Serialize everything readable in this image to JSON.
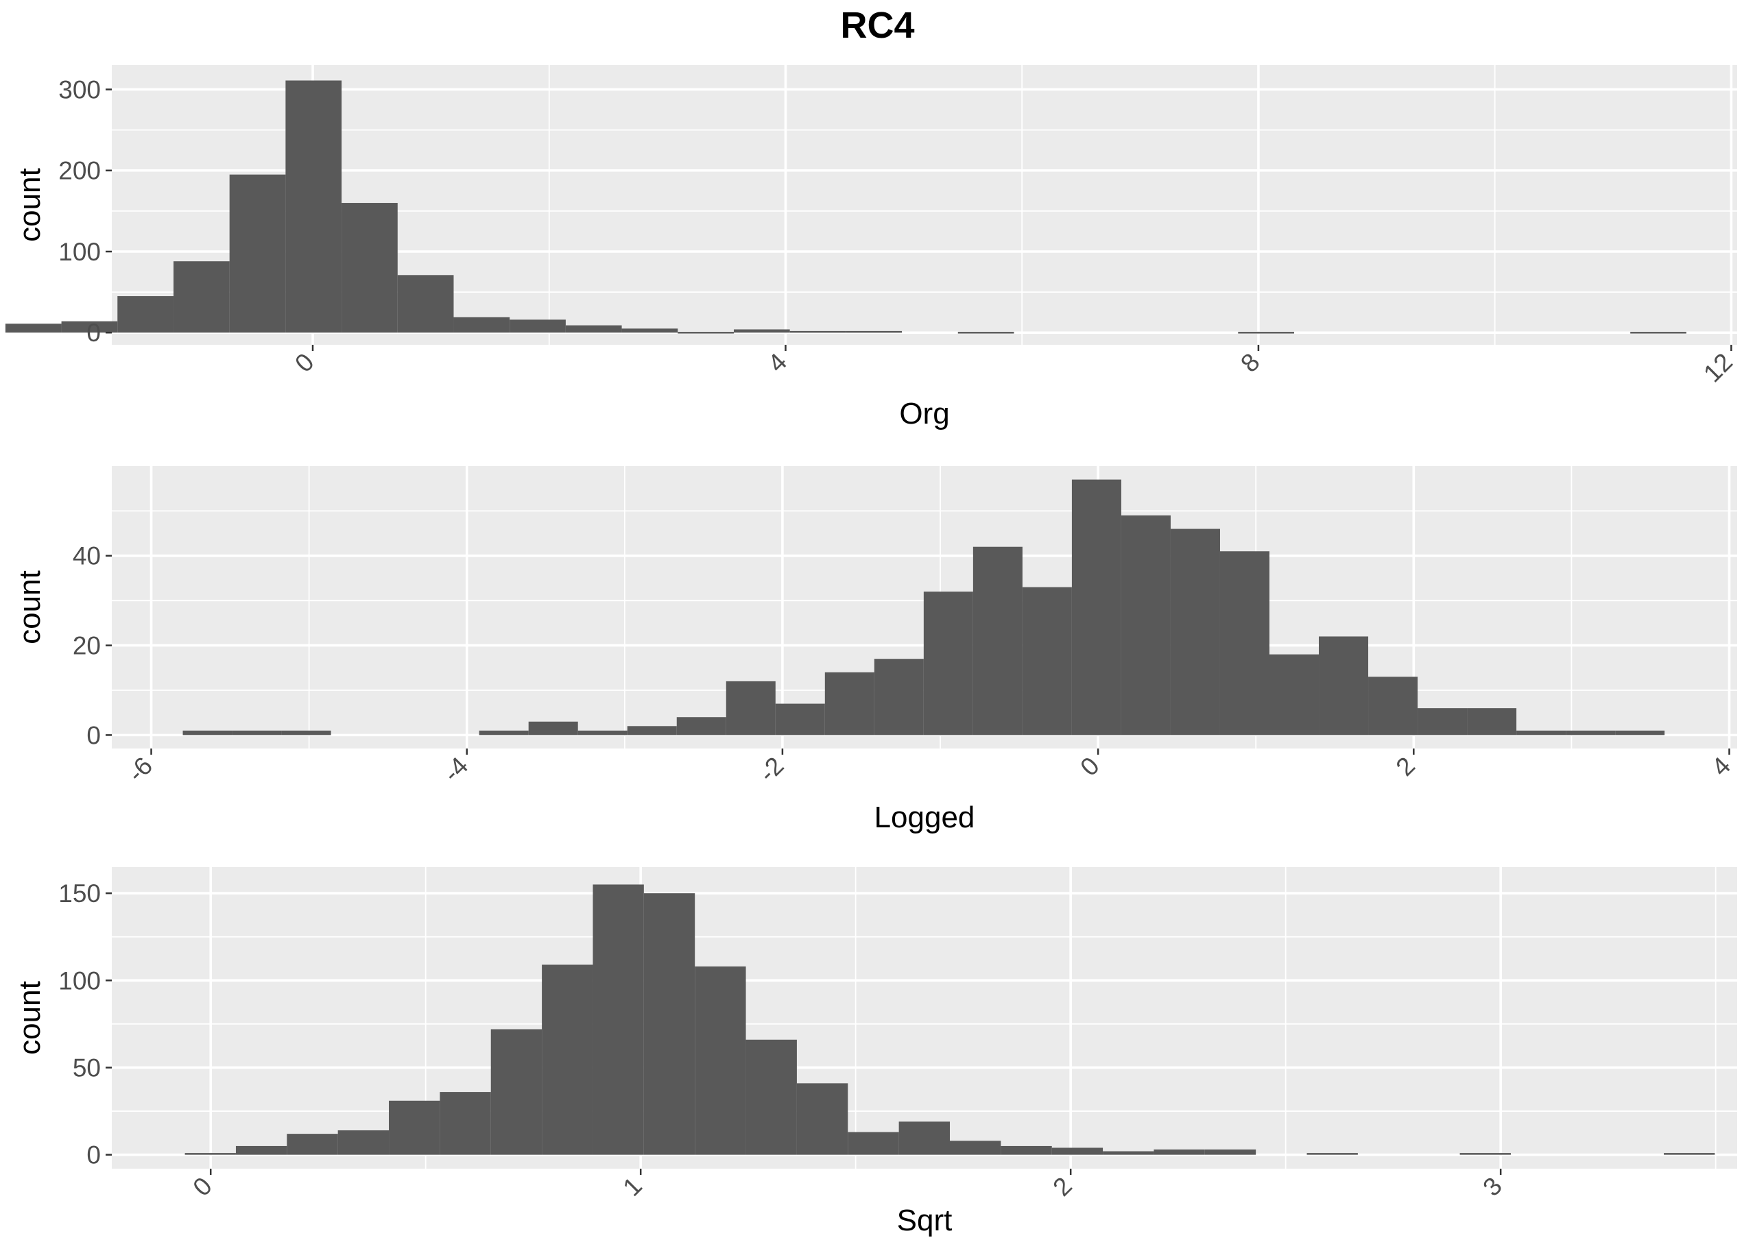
{
  "figure": {
    "title": "RC4"
  },
  "colors": {
    "panel_bg": "#EBEBEB",
    "grid": "#FFFFFF",
    "bar": "#595959",
    "tick_text": "#4D4D4D",
    "axis_text": "#000000"
  },
  "chart_data": [
    {
      "type": "bar",
      "subtype": "histogram",
      "xlabel": "Org",
      "ylabel": "count",
      "xlim": [
        -1.7,
        12.05
      ],
      "ylim": [
        -15,
        330
      ],
      "xticks": [
        0,
        4,
        8,
        12
      ],
      "yticks": [
        0,
        100,
        200,
        300
      ],
      "grid": true,
      "bin_width": 0.474,
      "bins": [
        {
          "x0": -2.6,
          "x1": -2.126,
          "count": 11
        },
        {
          "x0": -2.126,
          "x1": -1.652,
          "count": 14
        },
        {
          "x0": -1.652,
          "x1": -1.178,
          "count": 45
        },
        {
          "x0": -1.178,
          "x1": -0.704,
          "count": 88
        },
        {
          "x0": -0.704,
          "x1": -0.23,
          "count": 195
        },
        {
          "x0": -0.23,
          "x1": 0.244,
          "count": 311
        },
        {
          "x0": 0.244,
          "x1": 0.718,
          "count": 160
        },
        {
          "x0": 0.718,
          "x1": 1.192,
          "count": 71
        },
        {
          "x0": 1.192,
          "x1": 1.666,
          "count": 19
        },
        {
          "x0": 1.666,
          "x1": 2.14,
          "count": 16
        },
        {
          "x0": 2.14,
          "x1": 2.614,
          "count": 9
        },
        {
          "x0": 2.614,
          "x1": 3.088,
          "count": 5
        },
        {
          "x0": 3.088,
          "x1": 3.562,
          "count": 1
        },
        {
          "x0": 3.562,
          "x1": 4.036,
          "count": 4
        },
        {
          "x0": 4.036,
          "x1": 4.51,
          "count": 2
        },
        {
          "x0": 4.51,
          "x1": 4.984,
          "count": 2
        },
        {
          "x0": 5.458,
          "x1": 5.932,
          "count": 1
        },
        {
          "x0": 7.828,
          "x1": 8.302,
          "count": 1
        },
        {
          "x0": 11.146,
          "x1": 11.62,
          "count": 1
        }
      ]
    },
    {
      "type": "bar",
      "subtype": "histogram",
      "xlabel": "Logged",
      "ylabel": "count",
      "xlim": [
        -6.25,
        4.05
      ],
      "ylim": [
        -3,
        60
      ],
      "xticks": [
        -6,
        -4,
        -2,
        0,
        2,
        4
      ],
      "yticks": [
        0,
        20,
        40
      ],
      "grid": true,
      "bin_width": 0.313,
      "bins": [
        {
          "x0": -5.8,
          "x1": -5.487,
          "count": 1
        },
        {
          "x0": -5.487,
          "x1": -5.174,
          "count": 1
        },
        {
          "x0": -5.174,
          "x1": -4.861,
          "count": 1
        },
        {
          "x0": -3.922,
          "x1": -3.609,
          "count": 1
        },
        {
          "x0": -3.609,
          "x1": -3.296,
          "count": 3
        },
        {
          "x0": -3.296,
          "x1": -2.983,
          "count": 1
        },
        {
          "x0": -2.983,
          "x1": -2.67,
          "count": 2
        },
        {
          "x0": -2.67,
          "x1": -2.357,
          "count": 4
        },
        {
          "x0": -2.357,
          "x1": -2.044,
          "count": 12
        },
        {
          "x0": -2.044,
          "x1": -1.731,
          "count": 7
        },
        {
          "x0": -1.731,
          "x1": -1.418,
          "count": 14
        },
        {
          "x0": -1.418,
          "x1": -1.105,
          "count": 17
        },
        {
          "x0": -1.105,
          "x1": -0.792,
          "count": 32
        },
        {
          "x0": -0.792,
          "x1": -0.479,
          "count": 42
        },
        {
          "x0": -0.479,
          "x1": -0.166,
          "count": 33
        },
        {
          "x0": -0.166,
          "x1": 0.147,
          "count": 57
        },
        {
          "x0": 0.147,
          "x1": 0.46,
          "count": 49
        },
        {
          "x0": 0.46,
          "x1": 0.773,
          "count": 46
        },
        {
          "x0": 0.773,
          "x1": 1.086,
          "count": 41
        },
        {
          "x0": 1.086,
          "x1": 1.399,
          "count": 18
        },
        {
          "x0": 1.399,
          "x1": 1.712,
          "count": 22
        },
        {
          "x0": 1.712,
          "x1": 2.025,
          "count": 13
        },
        {
          "x0": 2.025,
          "x1": 2.338,
          "count": 6
        },
        {
          "x0": 2.338,
          "x1": 2.651,
          "count": 6
        },
        {
          "x0": 2.651,
          "x1": 2.964,
          "count": 1
        },
        {
          "x0": 2.964,
          "x1": 3.277,
          "count": 1
        },
        {
          "x0": 3.277,
          "x1": 3.59,
          "count": 1
        }
      ]
    },
    {
      "type": "bar",
      "subtype": "histogram",
      "xlabel": "Sqrt",
      "ylabel": "count",
      "xlim": [
        -0.23,
        3.55
      ],
      "ylim": [
        -8,
        165
      ],
      "xticks": [
        0,
        1,
        2,
        3
      ],
      "yticks": [
        0,
        50,
        100,
        150
      ],
      "grid": true,
      "bin_width": 0.1186,
      "bins": [
        {
          "x0": -0.06,
          "x1": 0.0586,
          "count": 1
        },
        {
          "x0": 0.0586,
          "x1": 0.1772,
          "count": 5
        },
        {
          "x0": 0.1772,
          "x1": 0.2958,
          "count": 12
        },
        {
          "x0": 0.2958,
          "x1": 0.4144,
          "count": 14
        },
        {
          "x0": 0.4144,
          "x1": 0.533,
          "count": 31
        },
        {
          "x0": 0.533,
          "x1": 0.6516,
          "count": 36
        },
        {
          "x0": 0.6516,
          "x1": 0.7702,
          "count": 72
        },
        {
          "x0": 0.7702,
          "x1": 0.8888,
          "count": 109
        },
        {
          "x0": 0.8888,
          "x1": 1.0074,
          "count": 155
        },
        {
          "x0": 1.0074,
          "x1": 1.126,
          "count": 150
        },
        {
          "x0": 1.126,
          "x1": 1.2446,
          "count": 108
        },
        {
          "x0": 1.2446,
          "x1": 1.3632,
          "count": 66
        },
        {
          "x0": 1.3632,
          "x1": 1.4818,
          "count": 41
        },
        {
          "x0": 1.4818,
          "x1": 1.6004,
          "count": 13
        },
        {
          "x0": 1.6004,
          "x1": 1.719,
          "count": 19
        },
        {
          "x0": 1.719,
          "x1": 1.8376,
          "count": 8
        },
        {
          "x0": 1.8376,
          "x1": 1.9562,
          "count": 5
        },
        {
          "x0": 1.9562,
          "x1": 2.0748,
          "count": 4
        },
        {
          "x0": 2.0748,
          "x1": 2.1934,
          "count": 2
        },
        {
          "x0": 2.1934,
          "x1": 2.312,
          "count": 3
        },
        {
          "x0": 2.312,
          "x1": 2.4306,
          "count": 3
        },
        {
          "x0": 2.5492,
          "x1": 2.6678,
          "count": 1
        },
        {
          "x0": 2.905,
          "x1": 3.0236,
          "count": 1
        },
        {
          "x0": 3.3794,
          "x1": 3.498,
          "count": 1
        }
      ]
    }
  ]
}
